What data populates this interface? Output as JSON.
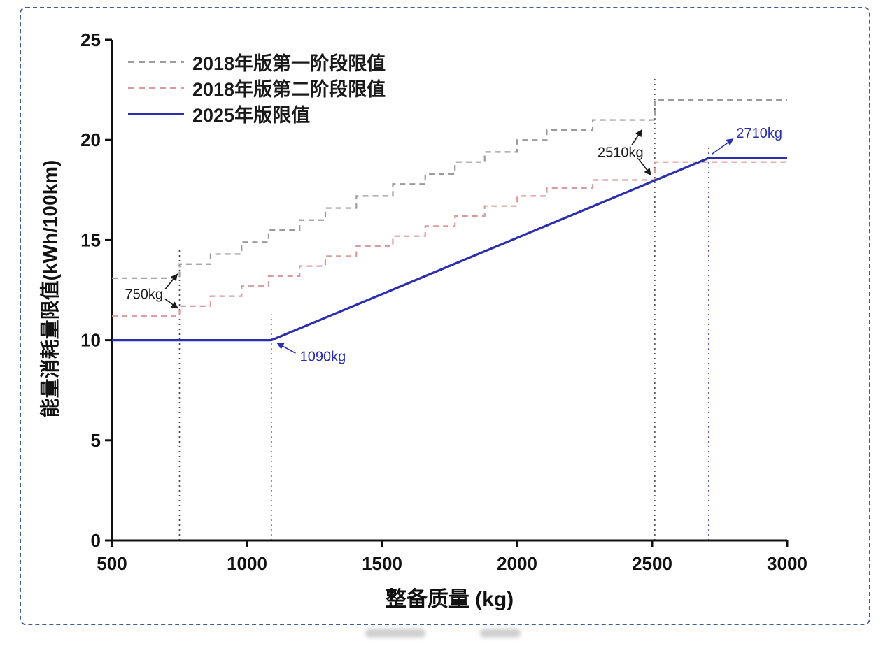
{
  "page": {
    "background": "#ffffff",
    "frame_border_color": "#3d5f9e"
  },
  "chart_data": {
    "type": "line",
    "title": "",
    "xlabel": "整备质量 (kg)",
    "ylabel": "能量消耗量限值(kWh/100km)",
    "xlim": [
      500,
      3000
    ],
    "ylim": [
      0,
      25
    ],
    "x_ticks": [
      500,
      1000,
      1500,
      2000,
      2500,
      3000
    ],
    "y_ticks": [
      0,
      5,
      10,
      15,
      20,
      25
    ],
    "grid": false,
    "legend_position": "top-left-inside",
    "axis_color": "#111111",
    "series": [
      {
        "name": "2018年版第一阶段限值",
        "type": "step",
        "color": "#9b9b9b",
        "dash": [
          8,
          6
        ],
        "width": 2.2,
        "breakpoints": [
          500,
          750,
          865,
          980,
          1080,
          1195,
          1290,
          1405,
          1540,
          1660,
          1770,
          1880,
          2000,
          2110,
          2280,
          2510,
          3000
        ],
        "values": [
          13.1,
          13.8,
          14.3,
          14.9,
          15.5,
          16.0,
          16.6,
          17.2,
          17.8,
          18.3,
          18.9,
          19.4,
          20.0,
          20.5,
          21.0,
          22.0
        ]
      },
      {
        "name": "2018年版第二阶段限值",
        "type": "step",
        "color": "#d99b9b",
        "dash": [
          8,
          6
        ],
        "width": 2.2,
        "breakpoints": [
          500,
          750,
          865,
          980,
          1080,
          1195,
          1290,
          1405,
          1540,
          1660,
          1770,
          1880,
          2000,
          2110,
          2280,
          2510,
          3000
        ],
        "values": [
          11.2,
          11.7,
          12.2,
          12.7,
          13.2,
          13.7,
          14.2,
          14.7,
          15.2,
          15.7,
          16.2,
          16.7,
          17.2,
          17.6,
          18.0,
          18.9
        ]
      },
      {
        "name": "2025年版限值",
        "type": "line",
        "color": "#2b2fae",
        "width": 3.2,
        "points": [
          [
            500,
            10.0
          ],
          [
            1090,
            10.0
          ],
          [
            2710,
            19.1
          ],
          [
            3000,
            19.1
          ]
        ]
      }
    ],
    "reference_lines": [
      {
        "x": 750,
        "y_top": 14.6,
        "color": "#4a4a4a"
      },
      {
        "x": 1090,
        "y_top": 11.3,
        "color": "#2b2fae"
      },
      {
        "x": 2510,
        "y_top": 23.2,
        "color": "#4a4a4a"
      },
      {
        "x": 2710,
        "y_top": 19.7,
        "color": "#2b2fae"
      }
    ],
    "annotations": [
      {
        "label": "750kg",
        "color": "#1a1a1a",
        "x": 689,
        "y": 12.3,
        "anchor": "end",
        "arrows": [
          {
            "from": [
              697,
              12.55
            ],
            "to": [
              742,
              13.3
            ]
          },
          {
            "from": [
              697,
              12.05
            ],
            "to": [
              744,
              11.6
            ]
          }
        ]
      },
      {
        "label": "1090kg",
        "color": "#2b2fae",
        "x": 1196,
        "y": 9.2,
        "anchor": "start",
        "arrows": [
          {
            "from": [
              1180,
              9.35
            ],
            "to": [
              1112,
              9.85
            ]
          }
        ]
      },
      {
        "label": "2510kg",
        "color": "#1a1a1a",
        "x": 2468,
        "y": 19.4,
        "anchor": "end",
        "arrows": [
          {
            "from": [
              2425,
              19.75
            ],
            "to": [
              2462,
              20.5
            ]
          },
          {
            "from": [
              2450,
              19.05
            ],
            "to": [
              2495,
              18.25
            ]
          }
        ]
      },
      {
        "label": "2710kg",
        "color": "#2b2fae",
        "x": 2812,
        "y": 20.35,
        "anchor": "start",
        "arrows": [
          {
            "from": [
              2722,
              19.3
            ],
            "to": [
              2800,
              20.05
            ]
          }
        ]
      }
    ]
  }
}
